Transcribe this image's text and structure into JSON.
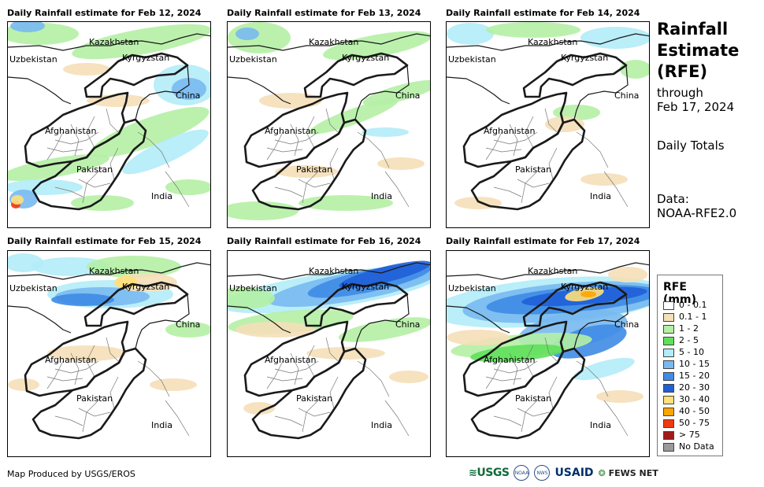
{
  "panels": [
    {
      "title": "Daily Rainfall estimate for Feb 12, 2024"
    },
    {
      "title": "Daily Rainfall estimate for Feb 13, 2024"
    },
    {
      "title": "Daily Rainfall estimate for Feb 14, 2024"
    },
    {
      "title": "Daily Rainfall estimate for Feb 15, 2024"
    },
    {
      "title": "Daily Rainfall estimate for Feb 16, 2024"
    },
    {
      "title": "Daily Rainfall estimate for Feb 17, 2024"
    }
  ],
  "country_labels": {
    "kazakhstan": "Kazakhstan",
    "uzbekistan": "Uzbekistan",
    "kyrgyzstan": "Kyrgyzstan",
    "china": "China",
    "afghanistan": "Afghanistan",
    "pakistan": "Pakistan",
    "india": "India"
  },
  "side": {
    "title_line1": "Rainfall",
    "title_line2": "Estimate",
    "title_line3": "(RFE)",
    "through": "through",
    "date": "Feb 17, 2024",
    "totals": "Daily Totals",
    "data_label": "Data:",
    "data_source": "NOAA-RFE2.0"
  },
  "legend": {
    "title": "RFE (mm)",
    "items": [
      {
        "label": "0 - 0.1",
        "color": "#ffffff"
      },
      {
        "label": "0.1 - 1",
        "color": "#f5dfb8"
      },
      {
        "label": "1 - 2",
        "color": "#b4f0a4"
      },
      {
        "label": "2 - 5",
        "color": "#5fe05a"
      },
      {
        "label": "5 - 10",
        "color": "#b2ecf8"
      },
      {
        "label": "10 - 15",
        "color": "#79b9f0"
      },
      {
        "label": "15 - 20",
        "color": "#3f8be6"
      },
      {
        "label": "20 - 30",
        "color": "#1f5fd8"
      },
      {
        "label": "30 - 40",
        "color": "#ffe07a"
      },
      {
        "label": "40 - 50",
        "color": "#ffa500"
      },
      {
        "label": "50 - 75",
        "color": "#ef3a10"
      },
      {
        "label": "> 75",
        "color": "#a01c1c"
      },
      {
        "label": "No Data",
        "color": "#9a9a9a"
      }
    ]
  },
  "footer": "Map Produced by USGS/EROS",
  "logos": {
    "usgs": "USGS",
    "noaa": "NOAA",
    "nws": "NWS",
    "usaid": "USAID",
    "fews": "FEWS NET"
  }
}
